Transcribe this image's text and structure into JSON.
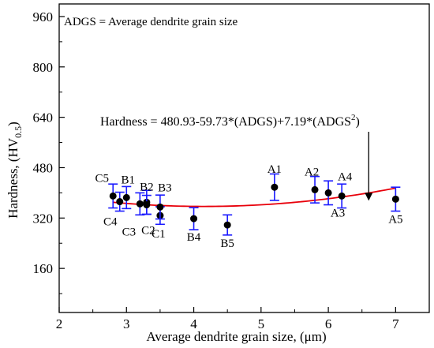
{
  "chart_data": {
    "type": "scatter",
    "title": "",
    "xlabel": "Average dendrite grain size, (μm)",
    "ylabel": {
      "main": "Hardness, (HV",
      "sub": "0.5",
      "close": ")"
    },
    "xlim": [
      2,
      7.5
    ],
    "ylim": [
      20,
      1000
    ],
    "x_ticks": [
      2,
      3,
      4,
      5,
      6,
      7
    ],
    "y_ticks": [
      160,
      320,
      480,
      640,
      800,
      960
    ],
    "grid": false,
    "legend_note": "ADGS = Average dendrite grain size",
    "equation": {
      "prefix": "Hardness = 480.93-59.73*(ADGS)+7.19*(ADGS",
      "superscript": "2",
      "suffix": ")",
      "arrow_target": {
        "x": 6.6,
        "y": 375
      }
    },
    "fit": {
      "a": 480.93,
      "b": -59.73,
      "c": 7.19,
      "x_range": [
        2.8,
        7.0
      ],
      "color": "#e8000b"
    },
    "error_bar_color": "#1a1aff",
    "points": [
      {
        "label": "C5",
        "x": 2.8,
        "y": 390,
        "err": 38
      },
      {
        "label": "C4",
        "x": 2.9,
        "y": 372,
        "err": 30
      },
      {
        "label": "B1",
        "x": 3.0,
        "y": 385,
        "err": 35
      },
      {
        "label": "C3",
        "x": 3.2,
        "y": 365,
        "err": 35
      },
      {
        "label": "C2",
        "x": 3.3,
        "y": 370,
        "err": 38
      },
      {
        "label": "B2",
        "x": 3.3,
        "y": 362,
        "err": 30
      },
      {
        "label": "C1",
        "x": 3.5,
        "y": 328,
        "err": 28
      },
      {
        "label": "B3",
        "x": 3.5,
        "y": 355,
        "err": 38
      },
      {
        "label": "B4",
        "x": 4.0,
        "y": 318,
        "err": 35
      },
      {
        "label": "B5",
        "x": 4.5,
        "y": 298,
        "err": 32
      },
      {
        "label": "A1",
        "x": 5.2,
        "y": 418,
        "err": 42
      },
      {
        "label": "A2",
        "x": 5.8,
        "y": 410,
        "err": 42
      },
      {
        "label": "A3",
        "x": 6.0,
        "y": 400,
        "err": 38
      },
      {
        "label": "A4",
        "x": 6.2,
        "y": 390,
        "err": 38
      },
      {
        "label": "A5",
        "x": 7.0,
        "y": 380,
        "err": 38
      }
    ]
  }
}
